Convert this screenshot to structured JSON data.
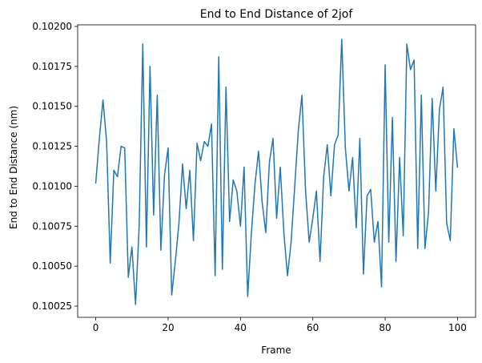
{
  "chart_data": {
    "type": "line",
    "title": "End to End Distance of 2jof",
    "xlabel": "Frame",
    "ylabel": "End to End Distance (nm)",
    "xlim": [
      -5,
      105
    ],
    "ylim": [
      0.10018,
      0.10201
    ],
    "xticks": [
      0,
      20,
      40,
      60,
      80,
      100
    ],
    "yticks": [
      0.10025,
      0.1005,
      0.10075,
      0.101,
      0.10125,
      0.1015,
      0.10175,
      0.102
    ],
    "ytick_labels": [
      "0.10025",
      "0.10050",
      "0.10075",
      "0.10100",
      "0.10125",
      "0.10150",
      "0.10175",
      "0.10200"
    ],
    "grid": false,
    "series": [
      {
        "color": "#1f77b4",
        "x": [
          0,
          1,
          2,
          3,
          4,
          5,
          6,
          7,
          8,
          9,
          10,
          11,
          12,
          13,
          14,
          15,
          16,
          17,
          18,
          19,
          20,
          21,
          22,
          23,
          24,
          25,
          26,
          27,
          28,
          29,
          30,
          31,
          32,
          33,
          34,
          35,
          36,
          37,
          38,
          39,
          40,
          41,
          42,
          43,
          44,
          45,
          46,
          47,
          48,
          49,
          50,
          51,
          52,
          53,
          54,
          55,
          56,
          57,
          58,
          59,
          60,
          61,
          62,
          63,
          64,
          65,
          66,
          67,
          68,
          69,
          70,
          71,
          72,
          73,
          74,
          75,
          76,
          77,
          78,
          79,
          80,
          81,
          82,
          83,
          84,
          85,
          86,
          87,
          88,
          89,
          90,
          91,
          92,
          93,
          94,
          95,
          96,
          97,
          98,
          99,
          100
        ],
        "y": [
          0.10102,
          0.1013,
          0.10154,
          0.10128,
          0.10052,
          0.1011,
          0.10106,
          0.10125,
          0.10124,
          0.10043,
          0.10062,
          0.10026,
          0.10075,
          0.10189,
          0.10062,
          0.10175,
          0.10082,
          0.10157,
          0.1006,
          0.10107,
          0.10124,
          0.10032,
          0.10053,
          0.10077,
          0.10114,
          0.10086,
          0.1011,
          0.10066,
          0.10127,
          0.10116,
          0.10128,
          0.10125,
          0.10139,
          0.10044,
          0.10181,
          0.10048,
          0.10162,
          0.10078,
          0.10104,
          0.10097,
          0.10075,
          0.10112,
          0.10031,
          0.1007,
          0.10101,
          0.10122,
          0.1009,
          0.10071,
          0.10115,
          0.1013,
          0.1008,
          0.10112,
          0.10071,
          0.10044,
          0.10065,
          0.101,
          0.10135,
          0.10157,
          0.10097,
          0.10065,
          0.1008,
          0.10097,
          0.10053,
          0.10106,
          0.10126,
          0.10094,
          0.10126,
          0.10132,
          0.10192,
          0.10124,
          0.10097,
          0.10118,
          0.10074,
          0.1013,
          0.10045,
          0.10094,
          0.10098,
          0.10065,
          0.10078,
          0.10037,
          0.10176,
          0.10065,
          0.10143,
          0.10053,
          0.10118,
          0.10069,
          0.10189,
          0.10173,
          0.10179,
          0.10061,
          0.10157,
          0.10061,
          0.10084,
          0.10155,
          0.10097,
          0.10148,
          0.10162,
          0.10077,
          0.10066,
          0.10136,
          0.10112
        ]
      }
    ]
  }
}
